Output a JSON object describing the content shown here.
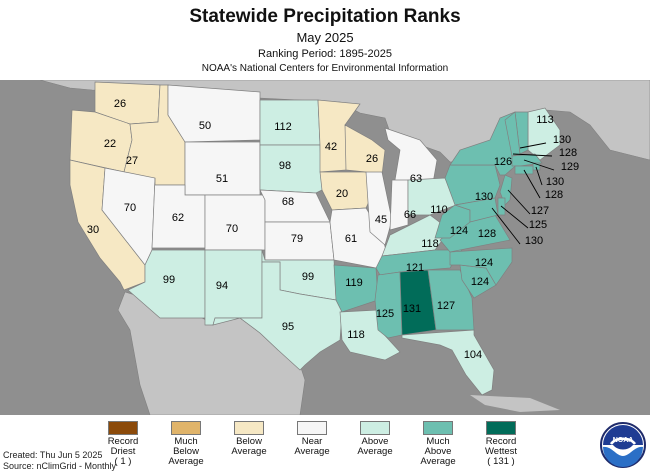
{
  "header": {
    "title": "Statewide Precipitation Ranks",
    "subtitle": "May 2025",
    "period": "Ranking Period: 1895-2025",
    "organization": "NOAA's National Centers for Environmental Information"
  },
  "colors": {
    "ocean": "#8f8f8f",
    "land_other": "#c4c4c4",
    "border": "#808080",
    "record_driest": "#8b4a0a",
    "much_below": "#e0b46a",
    "below": "#f6e8c4",
    "near": "#f6f6f6",
    "above": "#cdeee3",
    "much_above": "#6dbfb0",
    "record_wettest": "#016c59"
  },
  "map": {
    "states": [
      {
        "name": "WA",
        "rank": "26",
        "category": "below"
      },
      {
        "name": "OR",
        "rank": "22",
        "category": "below"
      },
      {
        "name": "CA",
        "rank": "30",
        "category": "below"
      },
      {
        "name": "ID",
        "rank": "27",
        "category": "below"
      },
      {
        "name": "NV",
        "rank": "70",
        "category": "near"
      },
      {
        "name": "MT",
        "rank": "50",
        "category": "near"
      },
      {
        "name": "WY",
        "rank": "51",
        "category": "near"
      },
      {
        "name": "UT",
        "rank": "62",
        "category": "near"
      },
      {
        "name": "CO",
        "rank": "70",
        "category": "near"
      },
      {
        "name": "AZ",
        "rank": "99",
        "category": "above"
      },
      {
        "name": "NM",
        "rank": "94",
        "category": "above"
      },
      {
        "name": "ND",
        "rank": "112",
        "category": "above"
      },
      {
        "name": "SD",
        "rank": "98",
        "category": "above"
      },
      {
        "name": "NE",
        "rank": "68",
        "category": "near"
      },
      {
        "name": "KS",
        "rank": "79",
        "category": "near"
      },
      {
        "name": "OK",
        "rank": "99",
        "category": "above"
      },
      {
        "name": "TX",
        "rank": "95",
        "category": "above"
      },
      {
        "name": "MN",
        "rank": "42",
        "category": "below"
      },
      {
        "name": "IA",
        "rank": "20",
        "category": "below"
      },
      {
        "name": "MO",
        "rank": "61",
        "category": "near"
      },
      {
        "name": "AR",
        "rank": "119",
        "category": "much_above"
      },
      {
        "name": "LA",
        "rank": "118",
        "category": "above"
      },
      {
        "name": "WI",
        "rank": "26",
        "category": "below"
      },
      {
        "name": "IL",
        "rank": "45",
        "category": "near"
      },
      {
        "name": "MI",
        "rank": "63",
        "category": "near"
      },
      {
        "name": "IN",
        "rank": "66",
        "category": "near"
      },
      {
        "name": "OH",
        "rank": "110",
        "category": "above"
      },
      {
        "name": "KY",
        "rank": "118",
        "category": "above"
      },
      {
        "name": "TN",
        "rank": "121",
        "category": "much_above"
      },
      {
        "name": "MS",
        "rank": "125",
        "category": "much_above"
      },
      {
        "name": "AL",
        "rank": "131",
        "category": "record_wettest"
      },
      {
        "name": "GA",
        "rank": "127",
        "category": "much_above"
      },
      {
        "name": "FL",
        "rank": "104",
        "category": "above"
      },
      {
        "name": "SC",
        "rank": "124",
        "category": "much_above"
      },
      {
        "name": "NC",
        "rank": "124",
        "category": "much_above"
      },
      {
        "name": "VA",
        "rank": "128",
        "category": "much_above"
      },
      {
        "name": "WV",
        "rank": "124",
        "category": "much_above"
      },
      {
        "name": "PA",
        "rank": "130",
        "category": "much_above"
      },
      {
        "name": "NY",
        "rank": "126",
        "category": "much_above"
      },
      {
        "name": "ME",
        "rank": "113",
        "category": "above"
      },
      {
        "name": "NH",
        "rank": "130",
        "category": "much_above"
      },
      {
        "name": "VT",
        "rank": "128",
        "category": "much_above"
      },
      {
        "name": "MA",
        "rank": "129",
        "category": "much_above"
      },
      {
        "name": "RI",
        "rank": "130",
        "category": "much_above"
      },
      {
        "name": "CT",
        "rank": "128",
        "category": "much_above"
      },
      {
        "name": "NJ",
        "rank": "127",
        "category": "much_above"
      },
      {
        "name": "DE",
        "rank": "125",
        "category": "much_above"
      },
      {
        "name": "MD",
        "rank": "130",
        "category": "much_above"
      }
    ]
  },
  "legend": [
    {
      "label": "Record Driest ( 1 )",
      "color": "#8b4a0a"
    },
    {
      "label": "Much Below Average",
      "color": "#e0b46a"
    },
    {
      "label": "Below Average",
      "color": "#f6e8c4"
    },
    {
      "label": "Near Average",
      "color": "#f6f6f6"
    },
    {
      "label": "Above Average",
      "color": "#cdeee3"
    },
    {
      "label": "Much Above Average",
      "color": "#6dbfb0"
    },
    {
      "label": "Record Wettest ( 131 )",
      "color": "#016c59"
    }
  ],
  "legend_lines": [
    [
      "Record",
      "Driest",
      "( 1 )"
    ],
    [
      "Much",
      "Below",
      "Average"
    ],
    [
      "Below",
      "Average"
    ],
    [
      "Near",
      "Average"
    ],
    [
      "Above",
      "Average"
    ],
    [
      "Much",
      "Above",
      "Average"
    ],
    [
      "Record",
      "Wettest",
      "( 131 )"
    ]
  ],
  "footer": {
    "created": "Created: Thu Jun  5 2025",
    "source": "Source: nClimGrid - Monthly",
    "logo_text": "NOAA"
  }
}
